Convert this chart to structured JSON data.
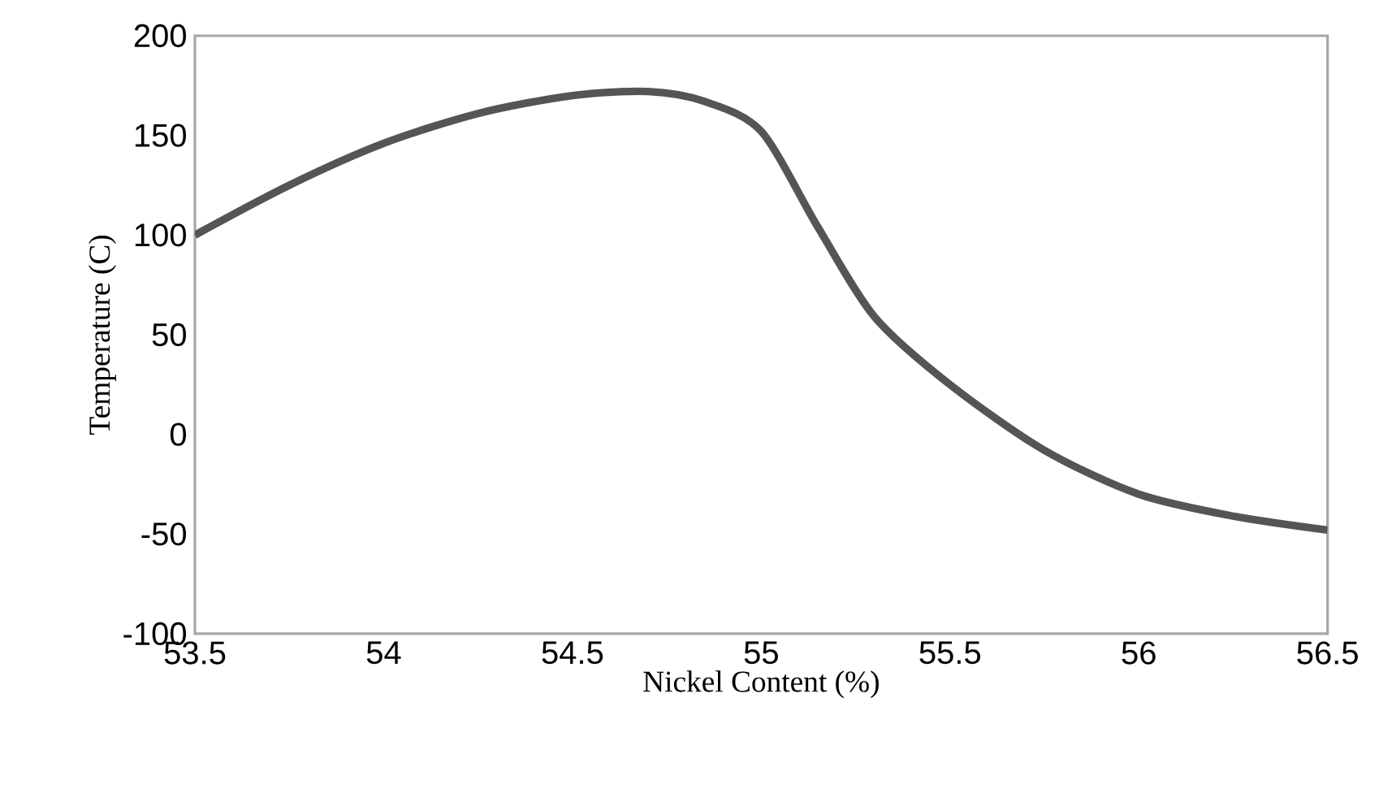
{
  "chart_data": {
    "type": "line",
    "xlabel": "Nickel Content (%)",
    "ylabel": "Temperature (C)",
    "x": [
      53.5,
      53.75,
      54.0,
      54.25,
      54.5,
      54.7,
      54.85,
      55.0,
      55.15,
      55.3,
      55.5,
      55.75,
      56.0,
      56.25,
      56.5
    ],
    "values": [
      100,
      125,
      146,
      161,
      170,
      172,
      167,
      152,
      104,
      59,
      25,
      -8,
      -30,
      -41,
      -48
    ],
    "color": "#555555",
    "xlim": [
      53.5,
      56.5
    ],
    "ylim": [
      -100,
      200
    ],
    "xticks": [
      53.5,
      54,
      54.5,
      55,
      55.5,
      56,
      56.5
    ],
    "yticks": [
      -100,
      -50,
      0,
      50,
      100,
      150,
      200
    ]
  }
}
